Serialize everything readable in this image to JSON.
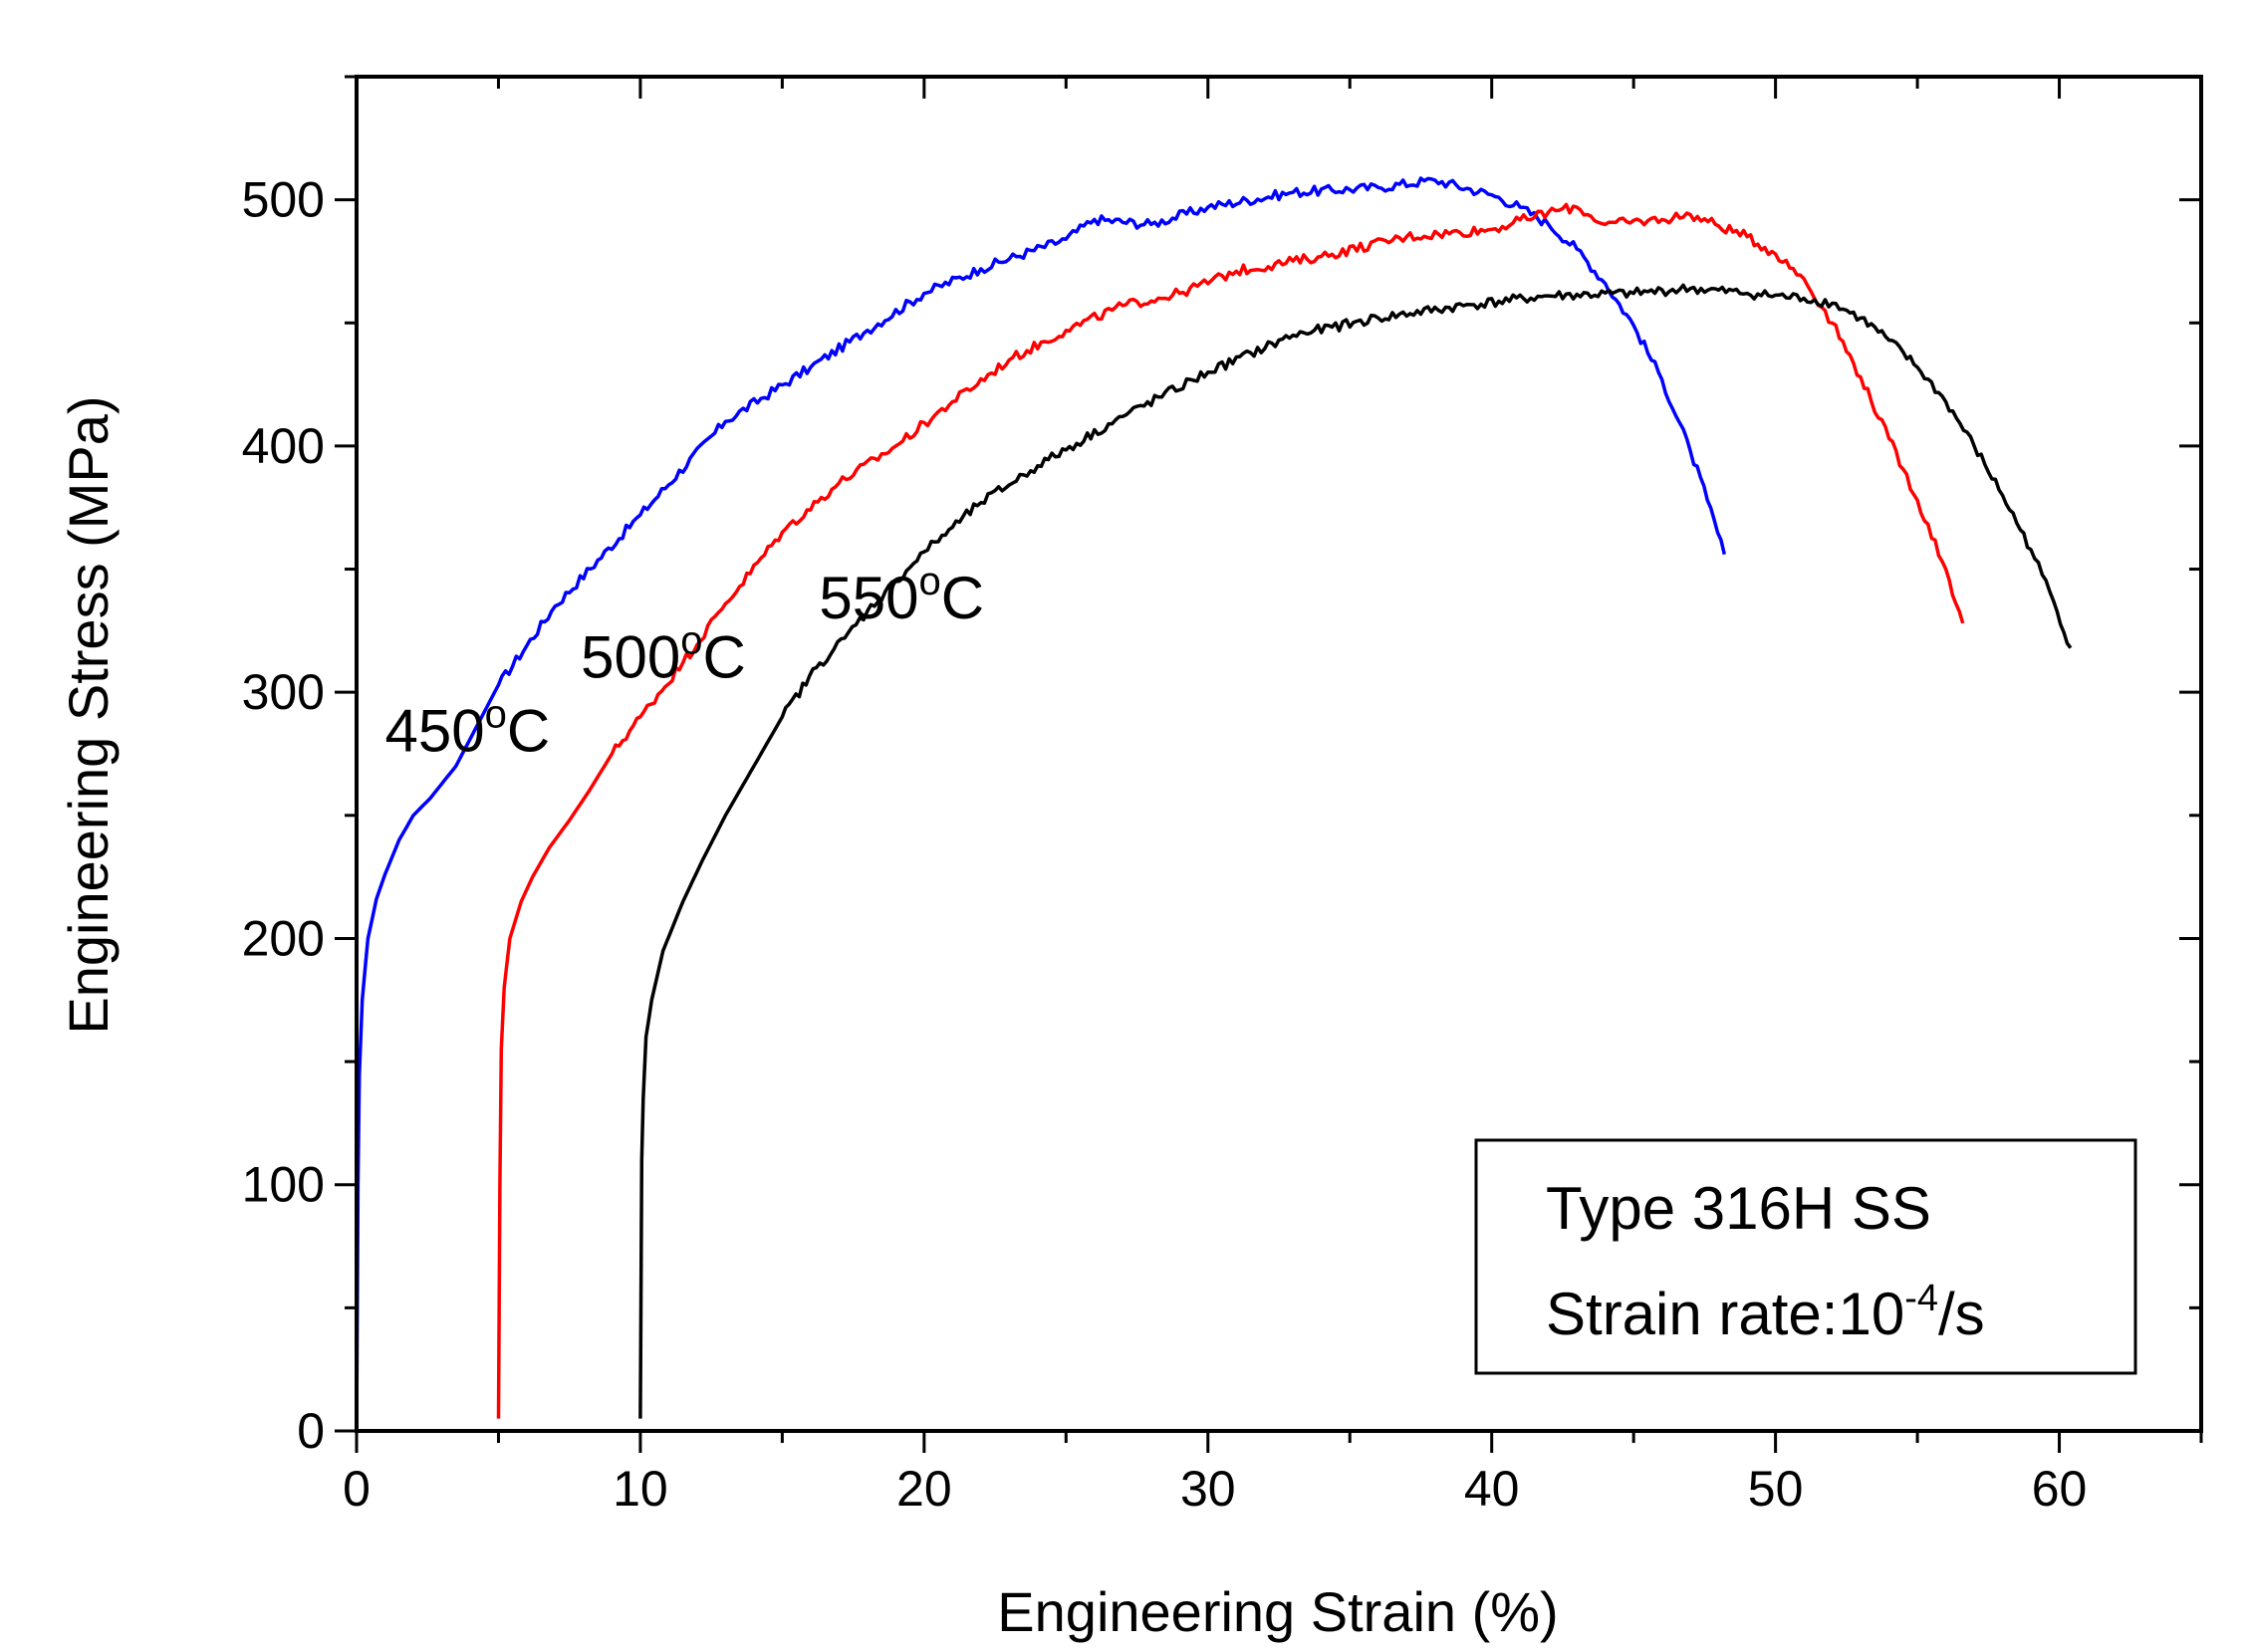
{
  "chart_data": {
    "type": "line",
    "title": "",
    "xlabel": "Engineering Strain (%)",
    "ylabel": "Engineering Stress (MPa)",
    "xlim": [
      0,
      65
    ],
    "ylim": [
      0,
      550
    ],
    "xticks": [
      0,
      10,
      20,
      30,
      40,
      50,
      60
    ],
    "xtick_labels": [
      "0",
      "10",
      "20",
      "30",
      "40",
      "50",
      "60"
    ],
    "yticks": [
      0,
      100,
      200,
      300,
      400,
      500
    ],
    "ytick_labels": [
      "0",
      "100",
      "200",
      "300",
      "400",
      "500"
    ],
    "grid": false,
    "legend_box": {
      "position": "bottom-right",
      "line1": "Type 316H SS",
      "line2_prefix": "Strain rate:10",
      "line2_exp": "-4",
      "line2_suffix": "/s"
    },
    "series": [
      {
        "name": "450°C",
        "label_main": "450",
        "label_sup": "o",
        "label_unit": "C",
        "color": "#0000ff",
        "x": [
          0,
          0.05,
          0.1,
          0.2,
          0.4,
          0.7,
          1.0,
          1.5,
          2.0,
          2.6,
          3.5,
          5.0,
          7.0,
          10.0,
          13.0,
          16.0,
          18.0,
          20.0,
          22.0,
          25.0,
          26.0,
          28.0,
          30.0,
          33.0,
          36.0,
          38.0,
          40.0,
          41.0,
          42.0,
          43.0,
          44.0,
          45.0,
          46.0,
          47.0,
          47.6,
          48.2
        ],
        "y": [
          0,
          100,
          145,
          175,
          200,
          216,
          226,
          240,
          250,
          257,
          270,
          303,
          335,
          372,
          410,
          432,
          447,
          462,
          472,
          484,
          492,
          490,
          497,
          503,
          505,
          508,
          502,
          497,
          490,
          480,
          466,
          449,
          427,
          398,
          378,
          356
        ],
        "label_at": [
          1.0,
          276
        ],
        "label_anchor": "start"
      },
      {
        "name": "500°C",
        "label_main": "500",
        "label_sup": "o",
        "label_unit": "C",
        "color": "#ff0000",
        "x": [
          5.0,
          5.05,
          5.1,
          5.2,
          5.4,
          5.8,
          6.2,
          6.8,
          7.5,
          8.2,
          9.0,
          10.0,
          11.5,
          13.0,
          15.0,
          17.0,
          19.0,
          21.0,
          23.0,
          25.0,
          27.0,
          29.0,
          31.0,
          34.0,
          37.0,
          40.0,
          42.0,
          43.0,
          44.0,
          46.0,
          47.0,
          49.0,
          50.0,
          51.0,
          52.0,
          53.0,
          54.0,
          55.0,
          56.0,
          56.6
        ],
        "y": [
          5,
          100,
          155,
          180,
          200,
          215,
          225,
          237,
          248,
          260,
          275,
          290,
          312,
          336,
          365,
          385,
          400,
          418,
          435,
          447,
          457,
          462,
          471,
          477,
          485,
          488,
          495,
          497,
          490,
          492,
          494,
          485,
          478,
          468,
          450,
          428,
          403,
          378,
          350,
          328
        ],
        "label_at": [
          7.9,
          306
        ],
        "label_anchor": "start"
      },
      {
        "name": "550°C",
        "label_main": "550",
        "label_sup": "o",
        "label_unit": "C",
        "color": "#000000",
        "x": [
          10.0,
          10.05,
          10.1,
          10.2,
          10.4,
          10.8,
          11.5,
          12.2,
          13.0,
          14.0,
          15.0,
          16.2,
          17.2,
          18.0,
          19.0,
          20.0,
          21.0,
          22.0,
          24.0,
          27.0,
          30.0,
          33.0,
          36.0,
          39.0,
          42.0,
          45.0,
          47.0,
          49.0,
          51.0,
          52.0,
          53.0,
          54.0,
          55.0,
          56.0,
          57.0,
          58.0,
          59.0,
          59.8,
          60.4
        ],
        "y": [
          5,
          110,
          135,
          160,
          175,
          195,
          215,
          232,
          250,
          270,
          290,
          310,
          322,
          333,
          345,
          357,
          367,
          377,
          392,
          412,
          430,
          445,
          452,
          457,
          461,
          462,
          464,
          462,
          460,
          458,
          452,
          443,
          432,
          418,
          400,
          380,
          358,
          337,
          318
        ],
        "label_at": [
          16.3,
          330
        ],
        "label_anchor": "start"
      }
    ]
  }
}
